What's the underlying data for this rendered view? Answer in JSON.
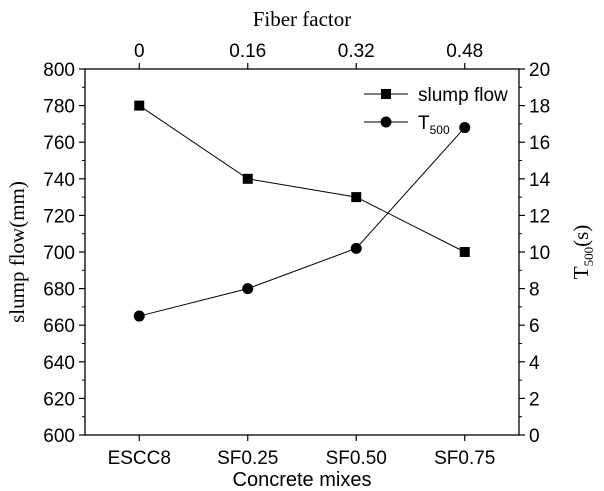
{
  "chart_data": {
    "type": "line",
    "categories": [
      "ESCC8",
      "SF0.25",
      "SF0.50",
      "SF0.75"
    ],
    "top_axis": {
      "label": "Fiber factor",
      "ticks": [
        "0",
        "0.16",
        "0.32",
        "0.48"
      ]
    },
    "xlabel": "Concrete mixes",
    "ylabel_left": "slump flow(mm)",
    "ylabel_right_main": "T",
    "ylabel_right_sub": "500",
    "ylabel_right_unit": "(s)",
    "ylim_left": [
      600,
      800
    ],
    "ylim_right": [
      0,
      20
    ],
    "yticks_left": [
      "600",
      "620",
      "640",
      "660",
      "680",
      "700",
      "720",
      "740",
      "760",
      "780",
      "800"
    ],
    "yticks_right": [
      "0",
      "2",
      "4",
      "6",
      "8",
      "10",
      "12",
      "14",
      "16",
      "18",
      "20"
    ],
    "grid": false,
    "legend_position": "top-right",
    "series": [
      {
        "name": "slump flow",
        "axis": "left",
        "marker": "square",
        "values": [
          780,
          740,
          730,
          700
        ]
      },
      {
        "name_main": "T",
        "name_sub": "500",
        "axis": "right",
        "marker": "circle",
        "values": [
          6.5,
          8.0,
          10.2,
          16.8
        ]
      }
    ]
  }
}
